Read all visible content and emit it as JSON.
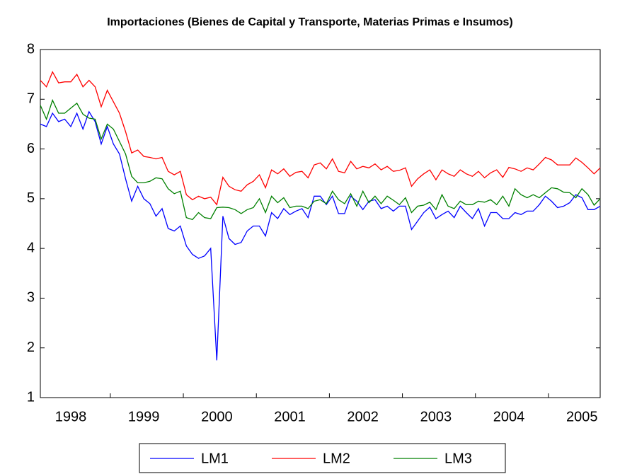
{
  "chart_data": {
    "type": "line",
    "title": "Importaciones (Bienes de Capital y Transporte, Materias Primas e Insumos)",
    "categories": [
      null,
      null,
      null,
      null,
      null,
      "1998",
      null,
      null,
      null,
      null,
      null,
      null,
      null,
      null,
      null,
      null,
      null,
      "1999",
      null,
      null,
      null,
      null,
      null,
      null,
      null,
      null,
      null,
      null,
      null,
      "2000",
      null,
      null,
      null,
      null,
      null,
      null,
      null,
      null,
      null,
      null,
      null,
      "2001",
      null,
      null,
      null,
      null,
      null,
      null,
      null,
      null,
      null,
      null,
      null,
      "2002",
      null,
      null,
      null,
      null,
      null,
      null,
      null,
      null,
      null,
      null,
      null,
      "2003",
      null,
      null,
      null,
      null,
      null,
      null,
      null,
      null,
      null,
      null,
      null,
      "2004",
      null,
      null,
      null,
      null,
      null,
      null,
      null,
      null,
      null,
      null,
      null,
      "2005",
      null,
      null,
      null
    ],
    "series": [
      {
        "name": "LM1",
        "color": "#0000ff",
        "values": [
          6.5,
          6.45,
          6.72,
          6.55,
          6.6,
          6.45,
          6.72,
          6.4,
          6.75,
          6.55,
          6.1,
          6.45,
          6.1,
          5.9,
          5.4,
          4.95,
          5.25,
          5.0,
          4.9,
          4.65,
          4.8,
          4.4,
          4.35,
          4.45,
          4.05,
          3.88,
          3.8,
          3.85,
          4.0,
          1.75,
          4.65,
          4.2,
          4.08,
          4.12,
          4.35,
          4.45,
          4.45,
          4.25,
          4.72,
          4.6,
          4.8,
          4.68,
          4.75,
          4.8,
          4.62,
          5.05,
          5.05,
          4.88,
          5.05,
          4.7,
          4.7,
          5.05,
          4.95,
          4.78,
          4.95,
          4.98,
          4.8,
          4.85,
          4.75,
          4.85,
          4.85,
          4.38,
          4.55,
          4.72,
          4.83,
          4.6,
          4.68,
          4.75,
          4.62,
          4.85,
          4.72,
          4.6,
          4.8,
          4.45,
          4.72,
          4.72,
          4.6,
          4.6,
          4.72,
          4.68,
          4.75,
          4.75,
          4.88,
          5.05,
          4.95,
          4.82,
          4.85,
          4.92,
          5.08,
          5.02,
          4.78,
          4.78,
          4.85
        ]
      },
      {
        "name": "LM2",
        "color": "#ff0000",
        "values": [
          7.38,
          7.25,
          7.55,
          7.33,
          7.35,
          7.35,
          7.5,
          7.25,
          7.38,
          7.25,
          6.85,
          7.18,
          6.95,
          6.72,
          6.35,
          5.92,
          5.98,
          5.85,
          5.83,
          5.8,
          5.83,
          5.55,
          5.48,
          5.55,
          5.08,
          4.98,
          5.05,
          5.0,
          5.03,
          4.88,
          5.43,
          5.25,
          5.18,
          5.15,
          5.28,
          5.35,
          5.48,
          5.22,
          5.58,
          5.5,
          5.6,
          5.45,
          5.53,
          5.55,
          5.42,
          5.68,
          5.72,
          5.6,
          5.8,
          5.55,
          5.52,
          5.75,
          5.6,
          5.65,
          5.62,
          5.7,
          5.58,
          5.65,
          5.55,
          5.57,
          5.62,
          5.25,
          5.4,
          5.5,
          5.58,
          5.38,
          5.58,
          5.5,
          5.45,
          5.58,
          5.5,
          5.45,
          5.55,
          5.42,
          5.52,
          5.58,
          5.43,
          5.63,
          5.6,
          5.55,
          5.62,
          5.58,
          5.7,
          5.83,
          5.78,
          5.68,
          5.68,
          5.68,
          5.82,
          5.73,
          5.62,
          5.5,
          5.62
        ]
      },
      {
        "name": "LM3",
        "color": "#008000",
        "values": [
          6.88,
          6.6,
          6.98,
          6.72,
          6.72,
          6.82,
          6.92,
          6.7,
          6.62,
          6.6,
          6.2,
          6.5,
          6.4,
          6.15,
          5.9,
          5.45,
          5.32,
          5.32,
          5.35,
          5.42,
          5.4,
          5.2,
          5.1,
          5.15,
          4.62,
          4.58,
          4.72,
          4.62,
          4.6,
          4.82,
          4.83,
          4.82,
          4.78,
          4.7,
          4.78,
          4.82,
          5.0,
          4.72,
          5.05,
          4.92,
          5.02,
          4.82,
          4.85,
          4.85,
          4.8,
          4.95,
          4.98,
          4.9,
          5.15,
          4.98,
          4.9,
          5.1,
          4.85,
          5.15,
          4.92,
          5.05,
          4.9,
          5.05,
          4.97,
          4.88,
          5.02,
          4.72,
          4.85,
          4.87,
          4.93,
          4.78,
          5.08,
          4.85,
          4.8,
          4.95,
          4.88,
          4.88,
          4.95,
          4.93,
          4.98,
          4.88,
          5.05,
          4.85,
          5.2,
          5.08,
          5.02,
          5.08,
          5.02,
          5.12,
          5.22,
          5.2,
          5.13,
          5.12,
          5.02,
          5.2,
          5.08,
          4.87,
          5.0
        ]
      }
    ],
    "ylim": [
      1,
      8
    ],
    "yticks": [
      1,
      2,
      3,
      4,
      5,
      6,
      7,
      8
    ],
    "grid": false
  }
}
